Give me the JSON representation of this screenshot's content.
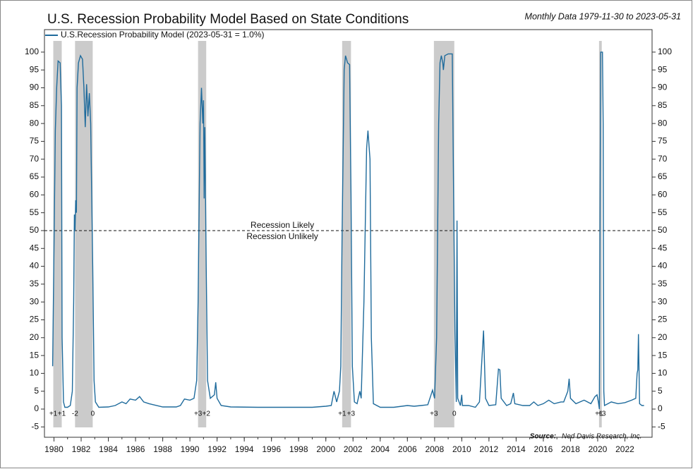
{
  "chart_data": {
    "type": "line",
    "title": "U.S. Recession Probability Model Based on State Conditions",
    "subtitle": "Monthly Data 1979-11-30 to 2023-05-31",
    "source_label": "Source:",
    "source": "Ned Davis Research, Inc.",
    "threshold": {
      "value": 50,
      "label_above": "Recession Likely",
      "label_below": "Recession Unlikely",
      "label_x": 1996.8
    },
    "recessions": [
      {
        "start": 1979.95,
        "end": 1980.57,
        "start_label": "+1",
        "end_label": "+1"
      },
      {
        "start": 1981.55,
        "end": 1982.85,
        "start_label": "-2",
        "end_label": "0"
      },
      {
        "start": 1990.6,
        "end": 1991.2,
        "start_label": "+3",
        "end_label": "+2"
      },
      {
        "start": 2001.2,
        "end": 2001.85,
        "start_label": "+1",
        "end_label": "+3"
      },
      {
        "start": 2007.95,
        "end": 2009.45,
        "start_label": "+3",
        "end_label": "0"
      },
      {
        "start": 2020.1,
        "end": 2020.3,
        "start_label": "+1",
        "end_label": "+3"
      }
    ],
    "x": [
      1979.9,
      1980.0,
      1980.1,
      1980.2,
      1980.3,
      1980.45,
      1980.55,
      1980.6,
      1980.7,
      1980.8,
      1981.0,
      1981.2,
      1981.35,
      1981.45,
      1981.5,
      1981.55,
      1981.6,
      1981.65,
      1981.7,
      1981.8,
      1981.95,
      1982.1,
      1982.2,
      1982.3,
      1982.4,
      1982.5,
      1982.6,
      1982.7,
      1982.85,
      1982.95,
      1983.05,
      1983.3,
      1984.0,
      1984.5,
      1985.0,
      1985.3,
      1985.6,
      1986.0,
      1986.3,
      1986.6,
      1987.0,
      1988.0,
      1989.0,
      1989.3,
      1989.6,
      1990.0,
      1990.3,
      1990.5,
      1990.6,
      1990.75,
      1990.85,
      1990.95,
      1991.0,
      1991.05,
      1991.1,
      1991.2,
      1991.3,
      1991.5,
      1991.8,
      1991.9,
      1992.0,
      1992.3,
      1993.0,
      1995.0,
      1997.0,
      1999.0,
      2000.0,
      2000.4,
      2000.6,
      2000.8,
      2001.0,
      2001.1,
      2001.2,
      2001.35,
      2001.45,
      2001.6,
      2001.75,
      2001.85,
      2001.95,
      2002.1,
      2002.3,
      2002.5,
      2002.6,
      2002.8,
      2003.0,
      2003.1,
      2003.25,
      2003.35,
      2003.5,
      2004.0,
      2005.0,
      2006.0,
      2006.5,
      2007.0,
      2007.5,
      2007.7,
      2007.85,
      2008.0,
      2008.15,
      2008.3,
      2008.4,
      2008.5,
      2008.6,
      2008.65,
      2008.75,
      2009.0,
      2009.3,
      2009.4,
      2009.5,
      2009.6,
      2009.65,
      2009.7,
      2009.9,
      2010.0,
      2010.05,
      2010.5,
      2011.0,
      2011.3,
      2011.6,
      2011.75,
      2012.0,
      2012.5,
      2012.7,
      2012.8,
      2012.9,
      2013.3,
      2013.6,
      2013.8,
      2013.9,
      2014.5,
      2015.0,
      2015.3,
      2015.6,
      2016.0,
      2016.4,
      2016.8,
      2017.3,
      2017.5,
      2017.8,
      2017.9,
      2018.0,
      2018.4,
      2019.0,
      2019.5,
      2019.8,
      2019.95,
      2020.05,
      2020.12,
      2020.18,
      2020.22,
      2020.35,
      2020.4,
      2020.45,
      2020.5,
      2021.0,
      2021.5,
      2022.0,
      2022.5,
      2022.8,
      2022.9,
      2022.95,
      2023.0,
      2023.08,
      2023.25,
      2023.41
    ],
    "series": [
      {
        "name": "U.S.Recession Probability Model (2023-05-31 = 1.0%)",
        "color": "#1f6b9c",
        "values": [
          12,
          45,
          78,
          90,
          97.5,
          97,
          85,
          20,
          2,
          0.5,
          0.5,
          1,
          5,
          30,
          54.5,
          50,
          58.5,
          55,
          90,
          97,
          99,
          98,
          90,
          79,
          91,
          82,
          88.5,
          80,
          40,
          8,
          2,
          0.5,
          0.6,
          1,
          2,
          1.5,
          2.8,
          2.5,
          3.5,
          2,
          1.5,
          0.6,
          0.6,
          1,
          2.8,
          2.5,
          3,
          8,
          30,
          80,
          90,
          80,
          86.5,
          59,
          79,
          40,
          8,
          3,
          4,
          7.5,
          3,
          1,
          0.6,
          0.5,
          0.5,
          0.5,
          0.8,
          1,
          5,
          2,
          5,
          12,
          50,
          95,
          99,
          97,
          96.5,
          60,
          12,
          2,
          1.5,
          5,
          3,
          30,
          73,
          78,
          70,
          20,
          1.5,
          0.5,
          0.5,
          1,
          0.8,
          1,
          1.2,
          3.5,
          5.3,
          3,
          20,
          80,
          97,
          99,
          97,
          95,
          99,
          99.5,
          99.5,
          60,
          21.5,
          2,
          52.8,
          3,
          1,
          4,
          1,
          1,
          0.5,
          2,
          22,
          3,
          1,
          1.2,
          11.2,
          11,
          3,
          1,
          1.5,
          4.5,
          1.5,
          1,
          1,
          2,
          1,
          1.5,
          2.5,
          1.5,
          2,
          2,
          5,
          8.5,
          3,
          1.5,
          2.5,
          1.5,
          3.5,
          4,
          2,
          0,
          60,
          100,
          100,
          80,
          5,
          1,
          2,
          1.5,
          1.8,
          2.5,
          3,
          10,
          11,
          21,
          1.5,
          1,
          1
        ]
      }
    ],
    "xlim": [
      1979.3,
      2024.0
    ],
    "ylim": [
      -7.9,
      106.3
    ],
    "xticks": [
      1980,
      1982,
      1984,
      1986,
      1988,
      1990,
      1992,
      1994,
      1996,
      1998,
      2000,
      2002,
      2004,
      2006,
      2008,
      2010,
      2012,
      2014,
      2016,
      2018,
      2020,
      2022
    ],
    "yticks": [
      -5,
      0,
      5,
      10,
      15,
      20,
      25,
      30,
      35,
      40,
      45,
      50,
      55,
      60,
      65,
      70,
      75,
      80,
      85,
      90,
      95,
      100
    ]
  }
}
